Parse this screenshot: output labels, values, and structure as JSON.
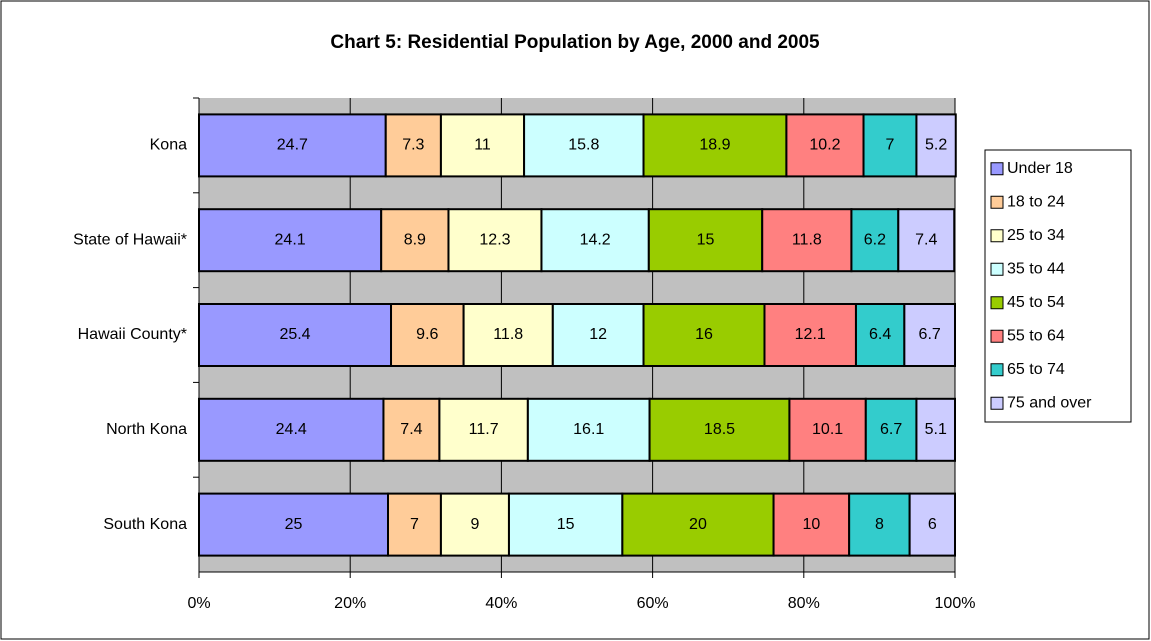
{
  "chart_data": {
    "type": "stacked_hbar",
    "title": "Chart 5: Residential Population by Age, 2000 and 2005",
    "categories": [
      "Kona",
      "State of Hawaii*",
      "Hawaii County*",
      "North Kona",
      "South Kona"
    ],
    "series": [
      {
        "name": "Under 18",
        "color": "#9999ff",
        "values": [
          24.7,
          24.1,
          25.4,
          24.4,
          25
        ]
      },
      {
        "name": "18 to 24",
        "color": "#ffcc99",
        "values": [
          7.3,
          8.9,
          9.6,
          7.4,
          7
        ]
      },
      {
        "name": "25 to 34",
        "color": "#ffffcc",
        "values": [
          11,
          12.3,
          11.8,
          11.7,
          9
        ]
      },
      {
        "name": "35 to 44",
        "color": "#ccffff",
        "values": [
          15.8,
          14.2,
          12,
          16.1,
          15
        ]
      },
      {
        "name": "45 to 54",
        "color": "#99cc00",
        "values": [
          18.9,
          15,
          16,
          18.5,
          20
        ]
      },
      {
        "name": "55 to 64",
        "color": "#ff8080",
        "values": [
          10.2,
          11.8,
          12.1,
          10.1,
          10
        ]
      },
      {
        "name": "65 to 74",
        "color": "#33cccc",
        "values": [
          7,
          6.2,
          6.4,
          6.7,
          8
        ]
      },
      {
        "name": "75 and over",
        "color": "#ccccff",
        "values": [
          5.2,
          7.4,
          6.7,
          5.1,
          6
        ]
      }
    ],
    "xlim": [
      0,
      100
    ],
    "xticks": [
      {
        "value": 0,
        "label": "0%"
      },
      {
        "value": 20,
        "label": "20%"
      },
      {
        "value": 40,
        "label": "40%"
      },
      {
        "value": 60,
        "label": "60%"
      },
      {
        "value": 80,
        "label": "80%"
      },
      {
        "value": 100,
        "label": "100%"
      }
    ],
    "grid": true,
    "legend": "right"
  }
}
